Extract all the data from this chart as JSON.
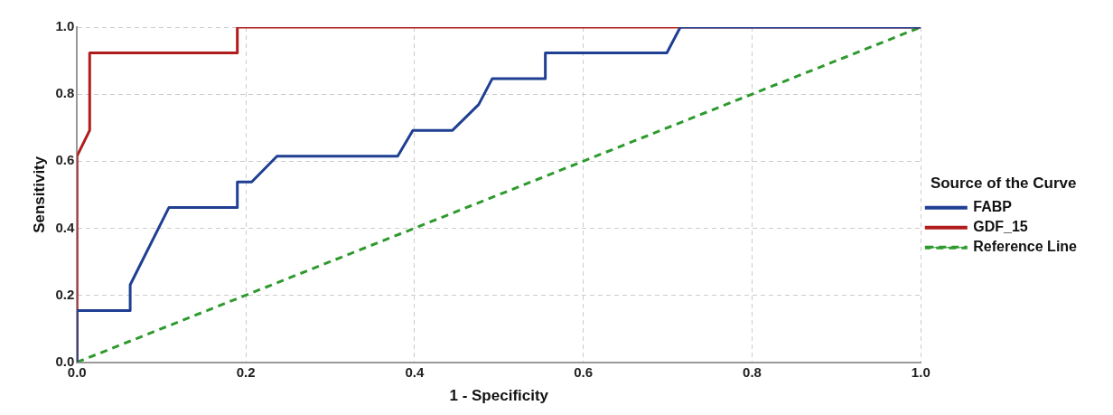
{
  "chart_data": {
    "type": "line",
    "xlabel": "1 - Specificity",
    "ylabel": "Sensitivity",
    "legend_title": "Source of the Curve",
    "xlim": [
      0,
      1
    ],
    "ylim": [
      0,
      1
    ],
    "xticks": [
      {
        "value": 0,
        "label": "0.0"
      },
      0.2,
      0.4,
      0.6,
      0.8,
      {
        "value": 1,
        "label": "1.0"
      }
    ],
    "yticks": [
      {
        "value": 0,
        "label": "0.0"
      },
      0.2,
      0.4,
      0.6,
      0.8,
      {
        "value": 1,
        "label": "1.0"
      }
    ],
    "grid": true,
    "legend": "right",
    "marker": "none",
    "series": [
      {
        "name": "FABP",
        "color": "#1f3f93",
        "x": [
          0,
          0,
          0.063,
          0.063,
          0.109,
          0.19,
          0.19,
          0.207,
          0.237,
          0.38,
          0.398,
          0.445,
          0.476,
          0.492,
          0.555,
          0.555,
          0.699,
          0.715,
          1
        ],
        "values": [
          0,
          0.154,
          0.154,
          0.231,
          0.462,
          0.462,
          0.538,
          0.538,
          0.615,
          0.615,
          0.692,
          0.692,
          0.769,
          0.846,
          0.846,
          0.923,
          0.923,
          1,
          1
        ]
      },
      {
        "name": "GDF_15",
        "color": "#b01c1c",
        "x": [
          0,
          0,
          0.015,
          0.015,
          0.19,
          0.19,
          1
        ],
        "values": [
          0,
          0.615,
          0.692,
          0.923,
          0.923,
          1,
          1
        ]
      },
      {
        "name": "Reference Line",
        "color": "#2e9a2e",
        "line_style": "dashed",
        "x": [
          0,
          1
        ],
        "values": [
          0,
          1
        ]
      }
    ]
  }
}
